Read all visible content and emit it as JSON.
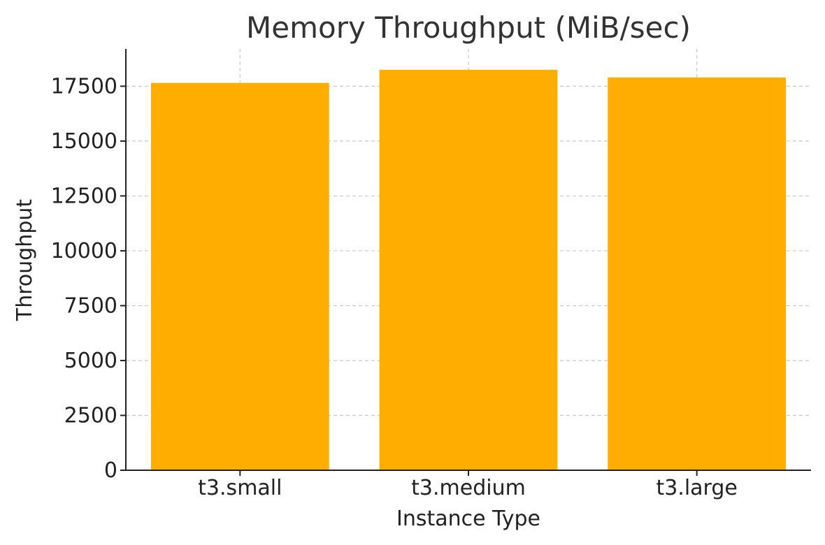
{
  "chart_data": {
    "type": "bar",
    "title": "Memory Throughput (MiB/sec)",
    "xlabel": "Instance Type",
    "ylabel": "Throughput",
    "categories": [
      "t3.small",
      "t3.medium",
      "t3.large"
    ],
    "values": [
      17650,
      18250,
      17900
    ],
    "ylim": [
      0,
      19200
    ],
    "yticks": [
      0,
      2500,
      5000,
      7500,
      10000,
      12500,
      15000,
      17500
    ],
    "grid": true,
    "bar_color": "#FFAE00"
  }
}
